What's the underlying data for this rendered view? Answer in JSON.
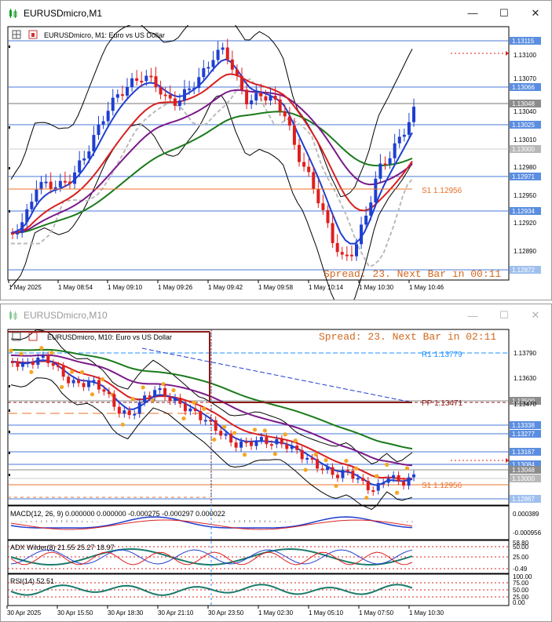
{
  "window1": {
    "title": "EURUSDmicro,M1",
    "chart_title": "EURUSDmicro, M1:  Euro vs US Dollar",
    "spread_text": "Spread: 23. Next Bar in 00:11",
    "s1_label": "S1 1.12956",
    "price_ticks": [
      "1.13100",
      "1.13070",
      "1.13040",
      "1.13010",
      "1.12980",
      "1.12950",
      "1.12920",
      "1.12890"
    ],
    "price_badges": [
      {
        "text": "1.13115",
        "color": "#5b8ee0"
      },
      {
        "text": "1.13066",
        "color": "#5b8ee0"
      },
      {
        "text": "1.13048",
        "color": "#8c8c8c"
      },
      {
        "text": "1.13025",
        "color": "#5b8ee0"
      },
      {
        "text": "1.13000",
        "color": "#b8b8b8"
      },
      {
        "text": "1.12971",
        "color": "#5b8ee0"
      },
      {
        "text": "1.12934",
        "color": "#5b8ee0"
      },
      {
        "text": "1.12872",
        "color": "#9fc0ef"
      }
    ],
    "time_labels": [
      "1 May 2025",
      "1 May 08:54",
      "1 May 09:10",
      "1 May 09:26",
      "1 May 09:42",
      "1 May 09:58",
      "1 May 10:14",
      "1 May 10:30",
      "1 May 10:46"
    ]
  },
  "window2": {
    "title": "EURUSDmicro,M10",
    "chart_title": "EURUSDmicro, M10:  Euro vs US Dollar",
    "spread_text": "Spread: 23. Next Bar in 02:11",
    "r1_label": "R1 1.13779",
    "pp_label": "PP 1.13471",
    "s1_label": "S1 1.12956",
    "price_ticks": [
      "1.13790",
      "1.13630",
      "1.13470"
    ],
    "price_badges": [
      {
        "text": "1.13500",
        "color": "#8c8c8c"
      },
      {
        "text": "1.13338",
        "color": "#5b8ee0"
      },
      {
        "text": "1.13277",
        "color": "#5b8ee0"
      },
      {
        "text": "1.13167",
        "color": "#5b8ee0"
      },
      {
        "text": "1.13084",
        "color": "#5b8ee0"
      },
      {
        "text": "1.13048",
        "color": "#8c8c8c"
      },
      {
        "text": "1.13000",
        "color": "#b8b8b8"
      },
      {
        "text": "1.12867",
        "color": "#9fc0ef"
      }
    ],
    "macd_label": "MACD(12, 26, 9) 0.000000 0.000000 -0.000275 -0.000297 0.000022",
    "macd_ticks": [
      "0.000389",
      "-0.000956"
    ],
    "adx_label": "ADX Wilder(8) 21.55 25.27 18.97",
    "adx_ticks": [
      "58.80",
      "50.00",
      "25.00",
      "-0.49"
    ],
    "rsi_label": "RSI(14) 52.51",
    "rsi_ticks": [
      "100.00",
      "75.00",
      "50.00",
      "25.00",
      "0.00"
    ],
    "time_labels": [
      "30 Apr 2025",
      "30 Apr 15:50",
      "30 Apr 18:30",
      "30 Apr 21:10",
      "30 Apr 23:50",
      "1 May 02:30",
      "1 May 05:10",
      "1 May 07:50",
      "1 May 10:30"
    ]
  },
  "colors": {
    "spread": "#d2691e",
    "pivot_blue": "#1e90ff",
    "pivot_brown": "#8b1a1a",
    "bull": "#1f3fd0",
    "bear": "#e01e1e"
  }
}
